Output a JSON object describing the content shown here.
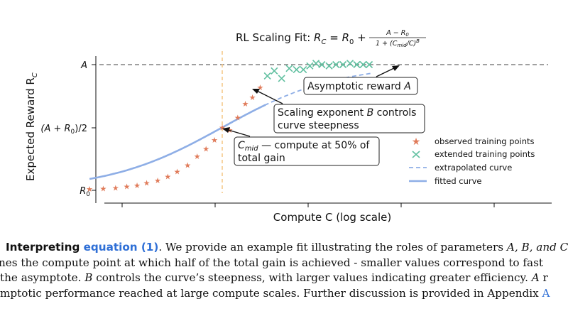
{
  "figure": {
    "title_prefix": "RL Scaling Fit: ",
    "title_formula": {
      "lhs": "R",
      "lhs_sub": "C",
      "eq": " = ",
      "r0": "R",
      "r0_sub": "0",
      "plus": " + ",
      "numerator": "A − R",
      "numerator_sub": "0",
      "denominator_pre": "1 + (C",
      "denominator_sub": "mid",
      "denominator_post": "/C)",
      "denominator_sup": "B"
    },
    "ylabel_text": "Expected Reward  R",
    "ylabel_sub": "C",
    "xlabel": "Compute  C  (log scale)",
    "yticks": {
      "top": "A",
      "mid_text": "(A + R",
      "mid_sub": "0",
      "mid_end": ")/2",
      "bottom": "R",
      "bottom_sub": "0"
    },
    "annotations": {
      "asymptotic": {
        "text": "Asymptotic reward ",
        "var": "A"
      },
      "scaling_line1_pre": "Scaling exponent ",
      "scaling_var": "B",
      "scaling_line1_post": " controls",
      "scaling_line2": " curve steepness",
      "cmid_main": "C",
      "cmid_sub": "mid",
      "cmid_line1_post": " — compute at 50% of",
      "cmid_line2": "total gain"
    },
    "legend": [
      {
        "label": "observed training points",
        "marker": "star",
        "color": "#e07b5a"
      },
      {
        "label": "extended training points",
        "marker": "x",
        "color": "#5fbf9f"
      },
      {
        "label": "extrapolated curve",
        "marker": "dashed-line",
        "color": "#8aa8e0"
      },
      {
        "label": "fitted curve",
        "marker": "solid-line",
        "color": "#8aa8e0"
      }
    ],
    "colors": {
      "fitted": "#8eaee6",
      "observed": "#e07b5a",
      "extended": "#5fbf9f",
      "asymptote": "#808080",
      "cmid_line": "#f5c98a"
    }
  },
  "chart_data": {
    "type": "scatter",
    "x_scale": "log",
    "y_axis_ticks": [
      "R0",
      "(A + R0)/2",
      "A"
    ],
    "fit": {
      "A": 1.0,
      "R0": 0.0,
      "C_mid": 1.0,
      "B": 2.2
    },
    "observed_points": {
      "x": [
        0.35,
        0.39,
        0.43,
        0.47,
        0.51,
        0.55,
        0.6,
        0.65,
        0.7,
        0.76,
        0.82,
        0.88,
        0.94,
        1.0,
        1.06,
        1.13,
        1.2,
        1.27,
        1.35
      ],
      "y": [
        0.01,
        0.015,
        0.02,
        0.03,
        0.04,
        0.06,
        0.08,
        0.11,
        0.15,
        0.2,
        0.27,
        0.33,
        0.4,
        0.5,
        0.48,
        0.58,
        0.69,
        0.74,
        0.82
      ]
    },
    "extended_points": {
      "x": [
        1.43,
        1.51,
        1.6,
        1.7,
        1.8,
        1.9,
        2.0,
        2.1,
        2.2,
        2.33,
        2.46,
        2.6,
        2.75,
        2.9,
        3.05,
        3.2
      ],
      "y": [
        0.91,
        0.95,
        0.89,
        0.97,
        0.96,
        0.96,
        0.99,
        1.01,
        1.0,
        0.99,
        1.0,
        1.0,
        1.01,
        1.0,
        1.0,
        1.0
      ]
    }
  },
  "caption": {
    "line1_label": "Interpreting ",
    "line1_link": "equation (1)",
    "line1_rest": ". We provide an example fit illustrating the roles of parameters ",
    "line1_vars": "A, B, and C",
    "line2": "nes the compute point at which half of the total gain is achieved - smaller values correspond to fast",
    "line3_pre": "the asymptote. ",
    "line3_var": "B",
    "line3_post": " controls the curve’s steepness, with larger values indicating greater efficiency. ",
    "line3_var2": "A",
    "line3_end": " r",
    "line4_pre": "mptotic performance reached at large compute scales. Further discussion is provided in Appendix ",
    "line4_link": "A"
  }
}
